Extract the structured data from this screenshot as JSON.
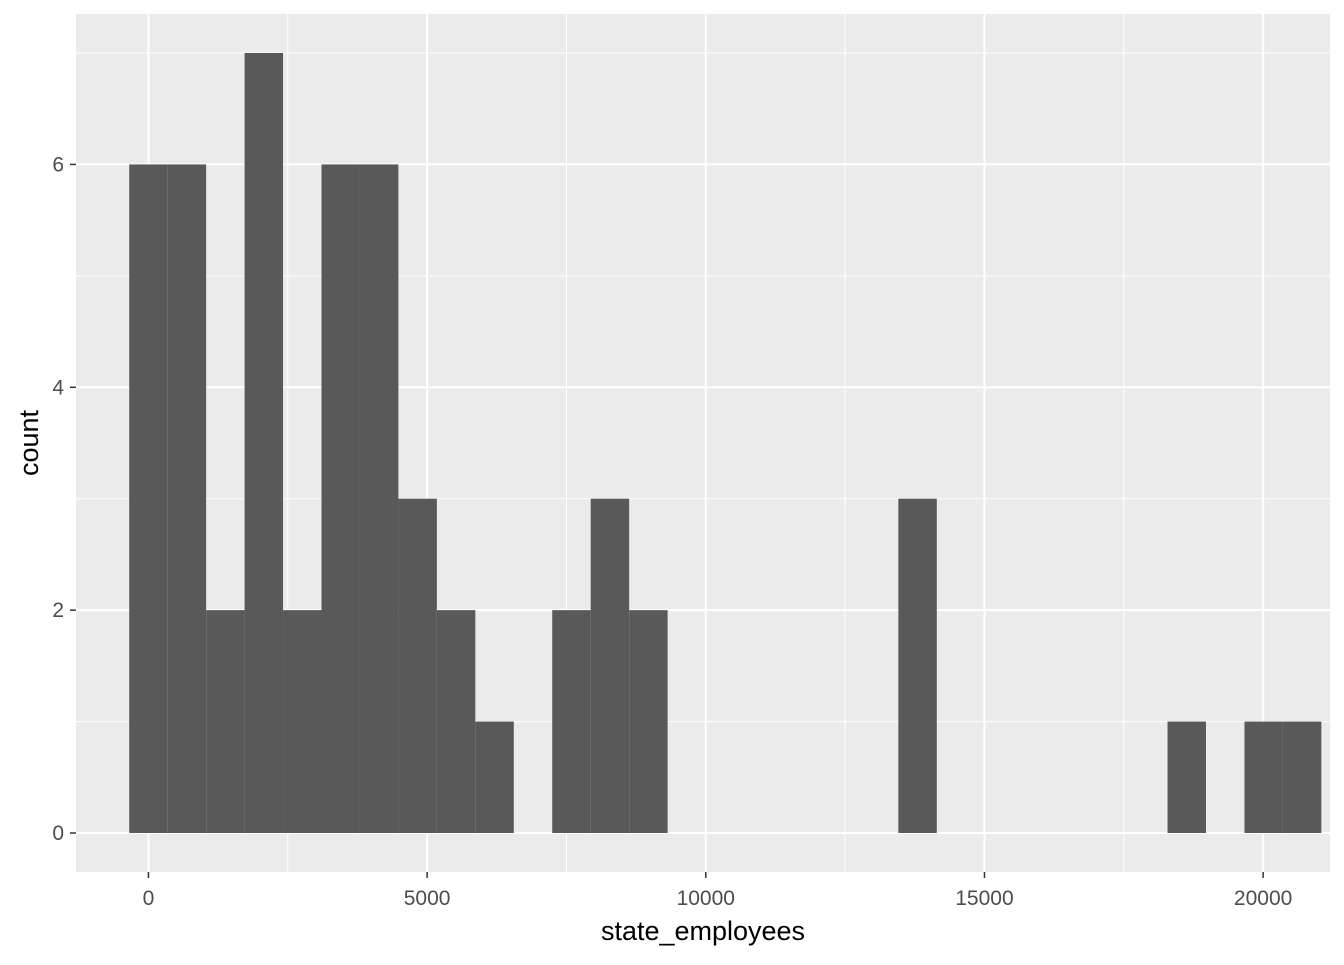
{
  "chart_data": {
    "type": "bar",
    "subtype": "histogram",
    "xlabel": "state_employees",
    "ylabel": "count",
    "x_ticks": [
      0,
      5000,
      10000,
      15000,
      20000
    ],
    "x_tick_labels": [
      "0",
      "5000",
      "10000",
      "15000",
      "20000"
    ],
    "y_ticks": [
      0,
      2,
      4,
      6
    ],
    "y_tick_labels": [
      "0",
      "2",
      "4",
      "6"
    ],
    "xlim": [
      -1300,
      21200
    ],
    "ylim": [
      -0.35,
      7.35
    ],
    "grid": true,
    "bin_width": 690,
    "first_bin_start": -345,
    "bin_counts": [
      6,
      6,
      2,
      7,
      2,
      6,
      6,
      3,
      2,
      1,
      0,
      2,
      3,
      2,
      0,
      0,
      0,
      0,
      0,
      0,
      3,
      0,
      0,
      0,
      0,
      0,
      0,
      1,
      0,
      1,
      1
    ],
    "colors": {
      "panel_background": "#ebebeb",
      "grid_major": "#ffffff",
      "bar_fill": "#595959",
      "tick_text": "#4d4d4d",
      "title_text": "#000000"
    }
  }
}
